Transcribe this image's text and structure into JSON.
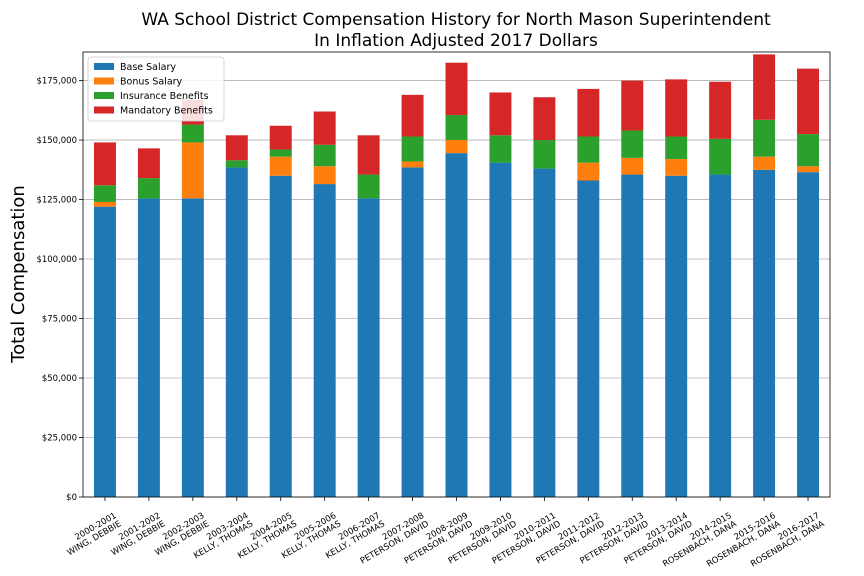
{
  "chart_data": {
    "type": "bar",
    "stacked": true,
    "title": [
      "WA School District Compensation History for North Mason Superintendent",
      "In Inflation Adjusted 2017 Dollars"
    ],
    "xlabel": "",
    "ylabel": "Total Compensation",
    "ylim": [
      0,
      187000
    ],
    "yticks": [
      0,
      25000,
      50000,
      75000,
      100000,
      125000,
      150000,
      175000
    ],
    "ytick_labels": [
      "$0",
      "$25,000",
      "$50,000",
      "$75,000",
      "$100,000",
      "$125,000",
      "$150,000",
      "$175,000"
    ],
    "grid": "y",
    "legend_position": "top-left",
    "categories": [
      [
        "2000-2001",
        "WING, DEBBIE"
      ],
      [
        "2001-2002",
        "WING, DEBBIE"
      ],
      [
        "2002-2003",
        "WING, DEBBIE"
      ],
      [
        "2003-2004",
        "KELLY, THOMAS"
      ],
      [
        "2004-2005",
        "KELLY, THOMAS"
      ],
      [
        "2005-2006",
        "KELLY, THOMAS"
      ],
      [
        "2006-2007",
        "KELLY, THOMAS"
      ],
      [
        "2007-2008",
        "PETERSON, DAVID"
      ],
      [
        "2008-2009",
        "PETERSON, DAVID"
      ],
      [
        "2009-2010",
        "PETERSON, DAVID"
      ],
      [
        "2010-2011",
        "PETERSON, DAVID"
      ],
      [
        "2011-2012",
        "PETERSON, DAVID"
      ],
      [
        "2012-2013",
        "PETERSON, DAVID"
      ],
      [
        "2013-2014",
        "PETERSON, DAVID"
      ],
      [
        "2014-2015",
        "ROSENBACH, DANA"
      ],
      [
        "2015-2016",
        "ROSENBACH, DANA"
      ],
      [
        "2016-2017",
        "ROSENBACH, DANA"
      ]
    ],
    "series": [
      {
        "name": "Base Salary",
        "color": "#1f77b4",
        "values": [
          122000,
          125500,
          125500,
          138500,
          135000,
          131500,
          125500,
          138500,
          144500,
          140500,
          138000,
          133000,
          135500,
          135000,
          135500,
          137500,
          136500
        ]
      },
      {
        "name": "Bonus Salary",
        "color": "#ff7f0e",
        "values": [
          2000,
          0,
          23500,
          0,
          8000,
          7500,
          0,
          2500,
          5500,
          0,
          0,
          7500,
          7000,
          7000,
          0,
          5500,
          2500
        ]
      },
      {
        "name": "Insurance Benefits",
        "color": "#2ca02c",
        "values": [
          7000,
          8500,
          7500,
          3000,
          3000,
          9000,
          10000,
          10500,
          10500,
          11500,
          12000,
          11000,
          11500,
          9500,
          15000,
          15500,
          13500
        ]
      },
      {
        "name": "Mandatory Benefits",
        "color": "#d62728",
        "values": [
          18000,
          12500,
          10500,
          10500,
          10000,
          14000,
          16500,
          17500,
          22000,
          18000,
          18000,
          20000,
          21000,
          24000,
          24000,
          27500,
          27500
        ]
      }
    ]
  }
}
